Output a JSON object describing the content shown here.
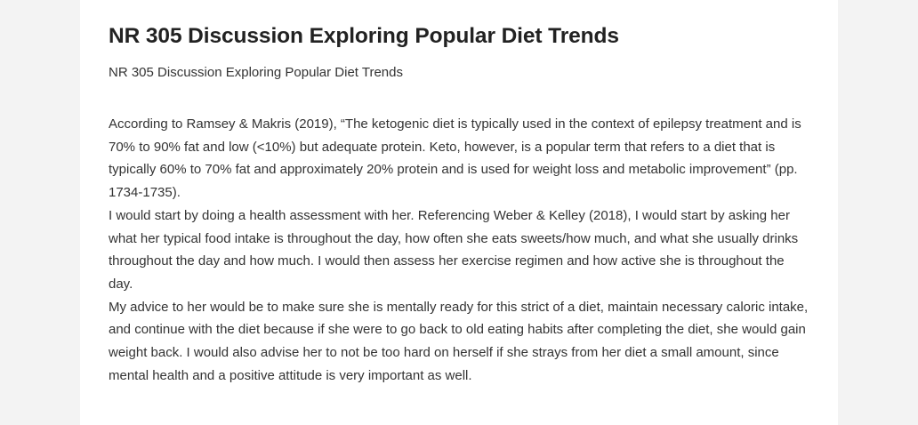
{
  "article": {
    "title": "NR 305 Discussion Exploring Popular Diet Trends",
    "subtitle": "NR 305 Discussion Exploring Popular Diet Trends",
    "paragraphs": [
      "According to Ramsey & Makris (2019), “The ketogenic diet is typically used in the context of epilepsy treatment and is 70% to 90% fat and low (<10%) but adequate protein. Keto, however, is a popular term that refers to a diet that is typically 60% to 70% fat and approximately 20% protein and is used for weight loss and metabolic improvement” (pp. 1734-1735).",
      "I would start by doing a health assessment with her. Referencing Weber & Kelley (2018), I would start by asking her what her typical food intake is throughout the day, how often she eats sweets/how much, and what she usually drinks throughout the day and how much. I would then assess her exercise regimen and how active she is throughout the day.",
      "My advice to her would be to make sure she is mentally ready for this strict of a diet, maintain necessary caloric intake, and continue with the diet because if she were to go back to old eating habits after completing the diet, she would gain weight back. I would also advise her to not be too hard on herself if she strays from her diet a small amount, since mental health and a positive attitude is very important as well."
    ]
  }
}
